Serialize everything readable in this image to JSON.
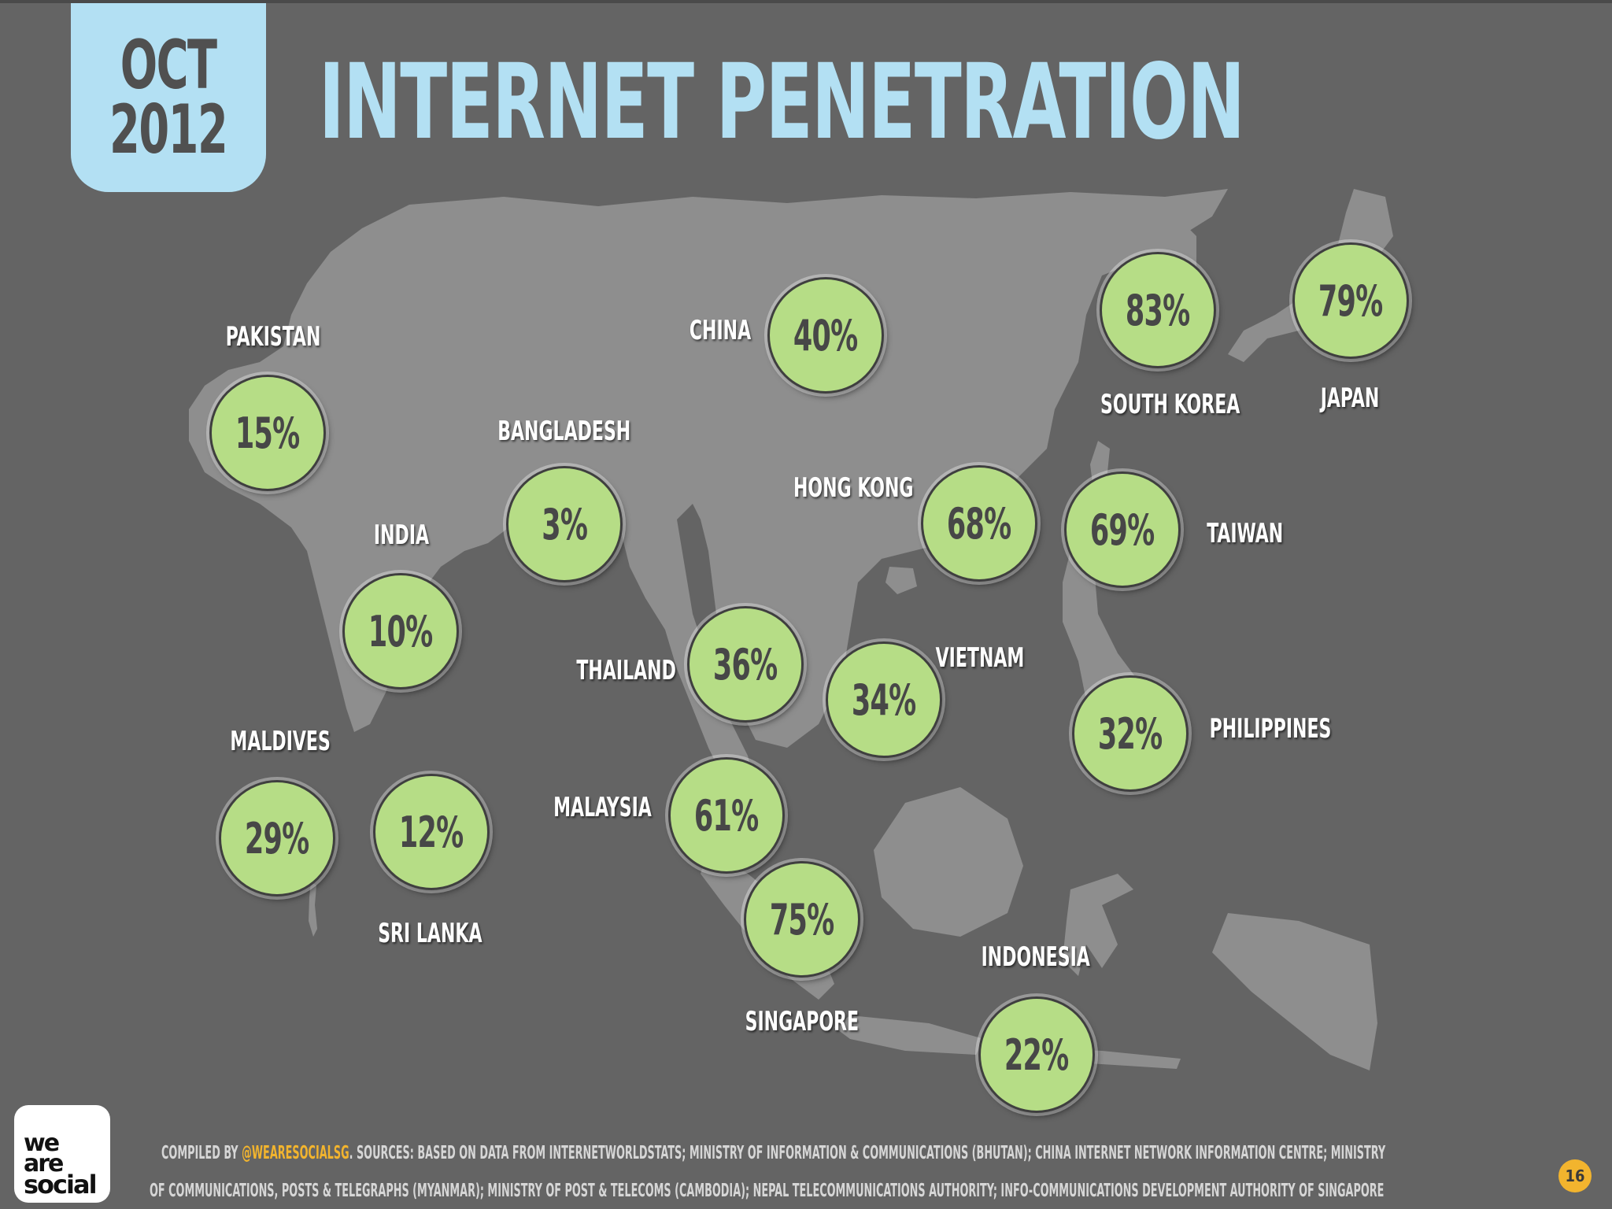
{
  "header": {
    "date_month": "OCT",
    "date_year": "2012",
    "title": "INTERNET PENETRATION"
  },
  "colors": {
    "background": "#646464",
    "land": "#8e8e8e",
    "accent_blue": "#b3e0f3",
    "bubble_green": "#b6dd86",
    "handle_orange": "#f2b42e"
  },
  "countries": [
    {
      "label": "PAKISTAN",
      "value": "15%"
    },
    {
      "label": "CHINA",
      "value": "40%"
    },
    {
      "label": "SOUTH KOREA",
      "value": "83%"
    },
    {
      "label": "JAPAN",
      "value": "79%"
    },
    {
      "label": "BANGLADESH",
      "value": "3%"
    },
    {
      "label": "INDIA",
      "value": "10%"
    },
    {
      "label": "HONG KONG",
      "value": "68%"
    },
    {
      "label": "TAIWAN",
      "value": "69%"
    },
    {
      "label": "THAILAND",
      "value": "36%"
    },
    {
      "label": "VIETNAM",
      "value": "34%"
    },
    {
      "label": "PHILIPPINES",
      "value": "32%"
    },
    {
      "label": "MALDIVES",
      "value": "29%"
    },
    {
      "label": "SRI LANKA",
      "value": "12%"
    },
    {
      "label": "MALAYSIA",
      "value": "61%"
    },
    {
      "label": "SINGAPORE",
      "value": "75%"
    },
    {
      "label": "INDONESIA",
      "value": "22%"
    }
  ],
  "logo": {
    "line1": "we",
    "line2": "are",
    "line3": "social"
  },
  "footer": {
    "compiled_by": "COMPILED BY ",
    "handle": "@WEARESOCIALSG",
    "line1_rest": ". SOURCES: BASED ON DATA FROM INTERNETWORLDSTATS; MINISTRY OF INFORMATION & COMMUNICATIONS (BHUTAN); CHINA INTERNET NETWORK INFORMATION CENTRE; MINISTRY",
    "line2": "OF COMMUNICATIONS, POSTS & TELEGRAPHS (MYANMAR); MINISTRY OF POST & TELECOMS (CAMBODIA); NEPAL TELECOMMUNICATIONS AUTHORITY; INFO-COMMUNICATIONS DEVELOPMENT AUTHORITY OF SINGAPORE",
    "page_number": "16"
  }
}
